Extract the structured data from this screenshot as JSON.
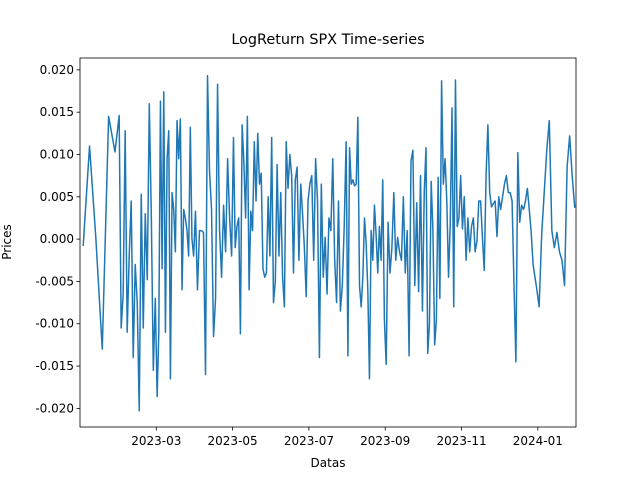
{
  "chart_data": {
    "type": "line",
    "title": "LogReturn SPX Time-series",
    "xlabel": "Datas",
    "ylabel": "Prices",
    "x": [
      "2023-01",
      "2023-01",
      "2023-01",
      "2023-01",
      "2023-01",
      "2023-01",
      "2023-02",
      "2023-02",
      "2023-02",
      "2023-02",
      "2023-02",
      "2023-02",
      "2023-02",
      "2023-02",
      "2023-02",
      "2023-02",
      "2023-02",
      "2023-02",
      "2023-02",
      "2023-02",
      "2023-02",
      "2023-02",
      "2023-02",
      "2023-02",
      "2023-02",
      "2023-03",
      "2023-03",
      "2023-03",
      "2023-03",
      "2023-03",
      "2023-03",
      "2023-03",
      "2023-03",
      "2023-03",
      "2023-03",
      "2023-03",
      "2023-03",
      "2023-03",
      "2023-03",
      "2023-03",
      "2023-03",
      "2023-03",
      "2023-03",
      "2023-03",
      "2023-03",
      "2023-03",
      "2023-03",
      "2023-03",
      "2023-04",
      "2023-04",
      "2023-04",
      "2023-04",
      "2023-04",
      "2023-04",
      "2023-04",
      "2023-04",
      "2023-04",
      "2023-04",
      "2023-04",
      "2023-04",
      "2023-04",
      "2023-04",
      "2023-04",
      "2023-04",
      "2023-04",
      "2023-04",
      "2023-04",
      "2023-05",
      "2023-05",
      "2023-05",
      "2023-05",
      "2023-05",
      "2023-05",
      "2023-05",
      "2023-05",
      "2023-05",
      "2023-05",
      "2023-05",
      "2023-05",
      "2023-05",
      "2023-05",
      "2023-05",
      "2023-05",
      "2023-05",
      "2023-05",
      "2023-05",
      "2023-05",
      "2023-05",
      "2023-05",
      "2023-06",
      "2023-06",
      "2023-06",
      "2023-06",
      "2023-06",
      "2023-06",
      "2023-06",
      "2023-06",
      "2023-06",
      "2023-06",
      "2023-06",
      "2023-06",
      "2023-06",
      "2023-06",
      "2023-06",
      "2023-06",
      "2023-06",
      "2023-06",
      "2023-06",
      "2023-06",
      "2023-06",
      "2023-07",
      "2023-07",
      "2023-07",
      "2023-07",
      "2023-07",
      "2023-07",
      "2023-07",
      "2023-07",
      "2023-07",
      "2023-07",
      "2023-07",
      "2023-07",
      "2023-07",
      "2023-07",
      "2023-07",
      "2023-07",
      "2023-07",
      "2023-07",
      "2023-07",
      "2023-07",
      "2023-08",
      "2023-08",
      "2023-08",
      "2023-08",
      "2023-08",
      "2023-08",
      "2023-08",
      "2023-08",
      "2023-08",
      "2023-08",
      "2023-08",
      "2023-08",
      "2023-08",
      "2023-08",
      "2023-08",
      "2023-08",
      "2023-08",
      "2023-08",
      "2023-08",
      "2023-08",
      "2023-08",
      "2023-08",
      "2023-08",
      "2023-09",
      "2023-09",
      "2023-09",
      "2023-09",
      "2023-09",
      "2023-09",
      "2023-09",
      "2023-09",
      "2023-09",
      "2023-09",
      "2023-09",
      "2023-09",
      "2023-09",
      "2023-09",
      "2023-09",
      "2023-09",
      "2023-09",
      "2023-09",
      "2023-09",
      "2023-09",
      "2023-10",
      "2023-10",
      "2023-10",
      "2023-10",
      "2023-10",
      "2023-10",
      "2023-10",
      "2023-10",
      "2023-10",
      "2023-10",
      "2023-10",
      "2023-10",
      "2023-10",
      "2023-10",
      "2023-10",
      "2023-10",
      "2023-10",
      "2023-10",
      "2023-10",
      "2023-10",
      "2023-10",
      "2023-10",
      "2023-11",
      "2023-11",
      "2023-11",
      "2023-11",
      "2023-11",
      "2023-11",
      "2023-11",
      "2023-11",
      "2023-11",
      "2023-11",
      "2023-11",
      "2023-11",
      "2023-11",
      "2023-11",
      "2023-11",
      "2023-11",
      "2023-11",
      "2023-11",
      "2023-11",
      "2023-11",
      "2023-11",
      "2023-12",
      "2023-12",
      "2023-12",
      "2023-12",
      "2023-12",
      "2023-12",
      "2023-12",
      "2023-12",
      "2023-12",
      "2023-12",
      "2023-12",
      "2023-12",
      "2023-12",
      "2023-12",
      "2023-12",
      "2023-12",
      "2023-12",
      "2023-12",
      "2023-12",
      "2023-12",
      "2024-01",
      "2024-01",
      "2024-01",
      "2024-01",
      "2024-01",
      "2024-01",
      "2024-01",
      "2024-01",
      "2024-01",
      "2024-01",
      "2024-01",
      "2024-01",
      "2024-01",
      "2024-01",
      "2024-01"
    ],
    "series": [
      {
        "color": "#1f77b4",
        "values": [
          -0.0008,
          0.011,
          0.0,
          -0.013,
          0.0145,
          0.0103,
          0.0146,
          -0.0105,
          -0.0065,
          0.0128,
          -0.011,
          -0.002,
          0.0045,
          -0.014,
          -0.003,
          -0.0075,
          -0.0203,
          0.0053,
          -0.0105,
          0.003,
          -0.0048,
          0.016,
          0.003,
          -0.0155,
          -0.007,
          -0.0186,
          -0.011,
          0.0163,
          -0.0035,
          0.0174,
          -0.011,
          0.0095,
          0.0128,
          -0.0165,
          0.0055,
          0.0035,
          -0.0015,
          0.014,
          0.0095,
          0.0142,
          -0.006,
          0.0035,
          0.0025,
          0.001,
          -0.002,
          0.0132,
          0.0,
          -0.002,
          0.0033,
          -0.006,
          0.001,
          0.001,
          0.0008,
          -0.016,
          0.0193,
          0.008,
          0.0035,
          -0.0115,
          -0.007,
          0.0183,
          0.001,
          -0.0045,
          0.004,
          -0.0015,
          0.0095,
          0.0025,
          -0.002,
          0.012,
          -0.001,
          0.0015,
          0.0025,
          -0.0112,
          0.0135,
          0.009,
          0.0025,
          0.0145,
          -0.006,
          0.0033,
          0.001,
          0.0115,
          0.0045,
          0.0125,
          0.0065,
          0.0078,
          -0.0035,
          -0.0045,
          -0.004,
          0.005,
          -0.002,
          0.012,
          -0.0075,
          -0.005,
          0.0088,
          -0.002,
          0.0055,
          -0.0045,
          -0.008,
          0.0115,
          0.006,
          0.01,
          0.0075,
          -0.004,
          0.007,
          0.0085,
          -0.0025,
          0.0065,
          0.003,
          -0.001,
          -0.0068,
          0.0045,
          0.0065,
          0.0075,
          -0.0025,
          0.0095,
          0.0045,
          -0.014,
          0.0065,
          -0.0045,
          0.0002,
          -0.0065,
          0.0025,
          0.001,
          0.0095,
          -0.0025,
          -0.0075,
          0.0045,
          -0.0085,
          -0.0055,
          0.0015,
          0.0115,
          -0.0138,
          0.0108,
          0.0065,
          0.007,
          0.0063,
          0.0065,
          0.0144,
          -0.0055,
          -0.008,
          -0.0045,
          0.0025,
          -0.0005,
          -0.006,
          -0.0165,
          0.001,
          -0.0025,
          0.004,
          0.0005,
          -0.004,
          0.0015,
          -0.0025,
          0.007,
          -0.0095,
          -0.0148,
          0.002,
          -0.004,
          -0.001,
          0.0055,
          -0.0025,
          0.0002,
          -0.0015,
          -0.0025,
          0.005,
          -0.004,
          0.001,
          -0.0138,
          0.0092,
          0.0105,
          -0.0055,
          0.0043,
          -0.0062,
          0.0075,
          -0.0085,
          0.0055,
          0.0108,
          -0.0135,
          -0.01,
          0.0068,
          0.001,
          -0.0125,
          -0.0095,
          0.0073,
          -0.007,
          0.0187,
          0.0065,
          0.0095,
          0.0045,
          -0.0045,
          0.002,
          0.0155,
          -0.008,
          0.0188,
          0.0015,
          0.0025,
          0.0075,
          0.0012,
          0.005,
          -0.0025,
          0.0025,
          -0.0015,
          0.0015,
          0.0025,
          -0.0015,
          -0.0002,
          0.0045,
          0.0045,
          0.0002,
          -0.0037,
          0.0075,
          0.0135,
          0.0055,
          0.0038,
          0.0042,
          0.0045,
          0.0003,
          0.005,
          0.0035,
          0.005,
          0.0065,
          0.0075,
          0.0055,
          0.0055,
          0.0045,
          -0.0055,
          -0.0145,
          0.0102,
          0.002,
          0.004,
          0.0035,
          0.0045,
          0.006,
          0.0035,
          0.0008,
          -0.003,
          -0.0045,
          -0.006,
          -0.008,
          0.0005,
          0.0055,
          0.0105,
          0.014,
          0.001,
          -0.001,
          0.0008,
          -0.0015,
          -0.0025,
          -0.0055,
          0.0085,
          0.0122,
          0.0075,
          0.0037
        ]
      }
    ],
    "xlim": [
      "2023-01",
      "2024-02"
    ],
    "xticks": [
      "2023-03",
      "2023-05",
      "2023-07",
      "2023-09",
      "2023-11",
      "2024-01"
    ],
    "ylim": [
      -0.0222,
      0.0214
    ],
    "yticks": [
      {
        "value": -0.02,
        "label": "-0.020"
      },
      {
        "value": -0.015,
        "label": "-0.015"
      },
      {
        "value": -0.01,
        "label": "-0.010"
      },
      {
        "value": -0.005,
        "label": "-0.005"
      },
      {
        "value": 0,
        "label": "0.000"
      },
      {
        "value": 0.005,
        "label": "0.005"
      },
      {
        "value": 0.01,
        "label": "0.010"
      },
      {
        "value": 0.015,
        "label": "0.015"
      },
      {
        "value": 0.02,
        "label": "0.020"
      }
    ]
  }
}
